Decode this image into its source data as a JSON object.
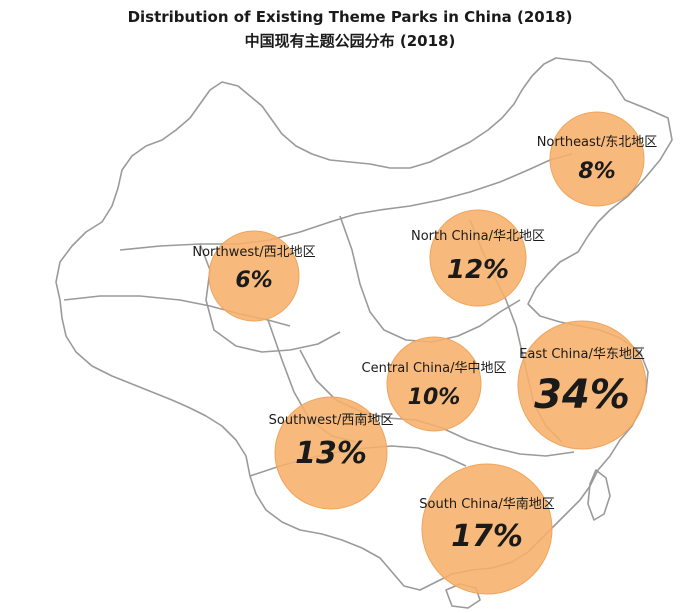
{
  "title_en": "Distribution of Existing Theme Parks in China (2018)",
  "title_zh": "中国现有主题公园分布 (2018)",
  "bubble_color": "#f6b06a",
  "bubble_stroke": "#f1a45a",
  "border_color": "#9a9a9a",
  "regions": [
    {
      "label": "Northeast/东北地区",
      "value": "8%"
    },
    {
      "label": "North China/华北地区",
      "value": "12%"
    },
    {
      "label": "Northwest/西北地区",
      "value": "6%"
    },
    {
      "label": "Central China/华中地区",
      "value": "10%"
    },
    {
      "label": "East China/华东地区",
      "value": "34%"
    },
    {
      "label": "Southwest/西南地区",
      "value": "13%"
    },
    {
      "label": "South China/华南地区",
      "value": "17%"
    }
  ]
}
